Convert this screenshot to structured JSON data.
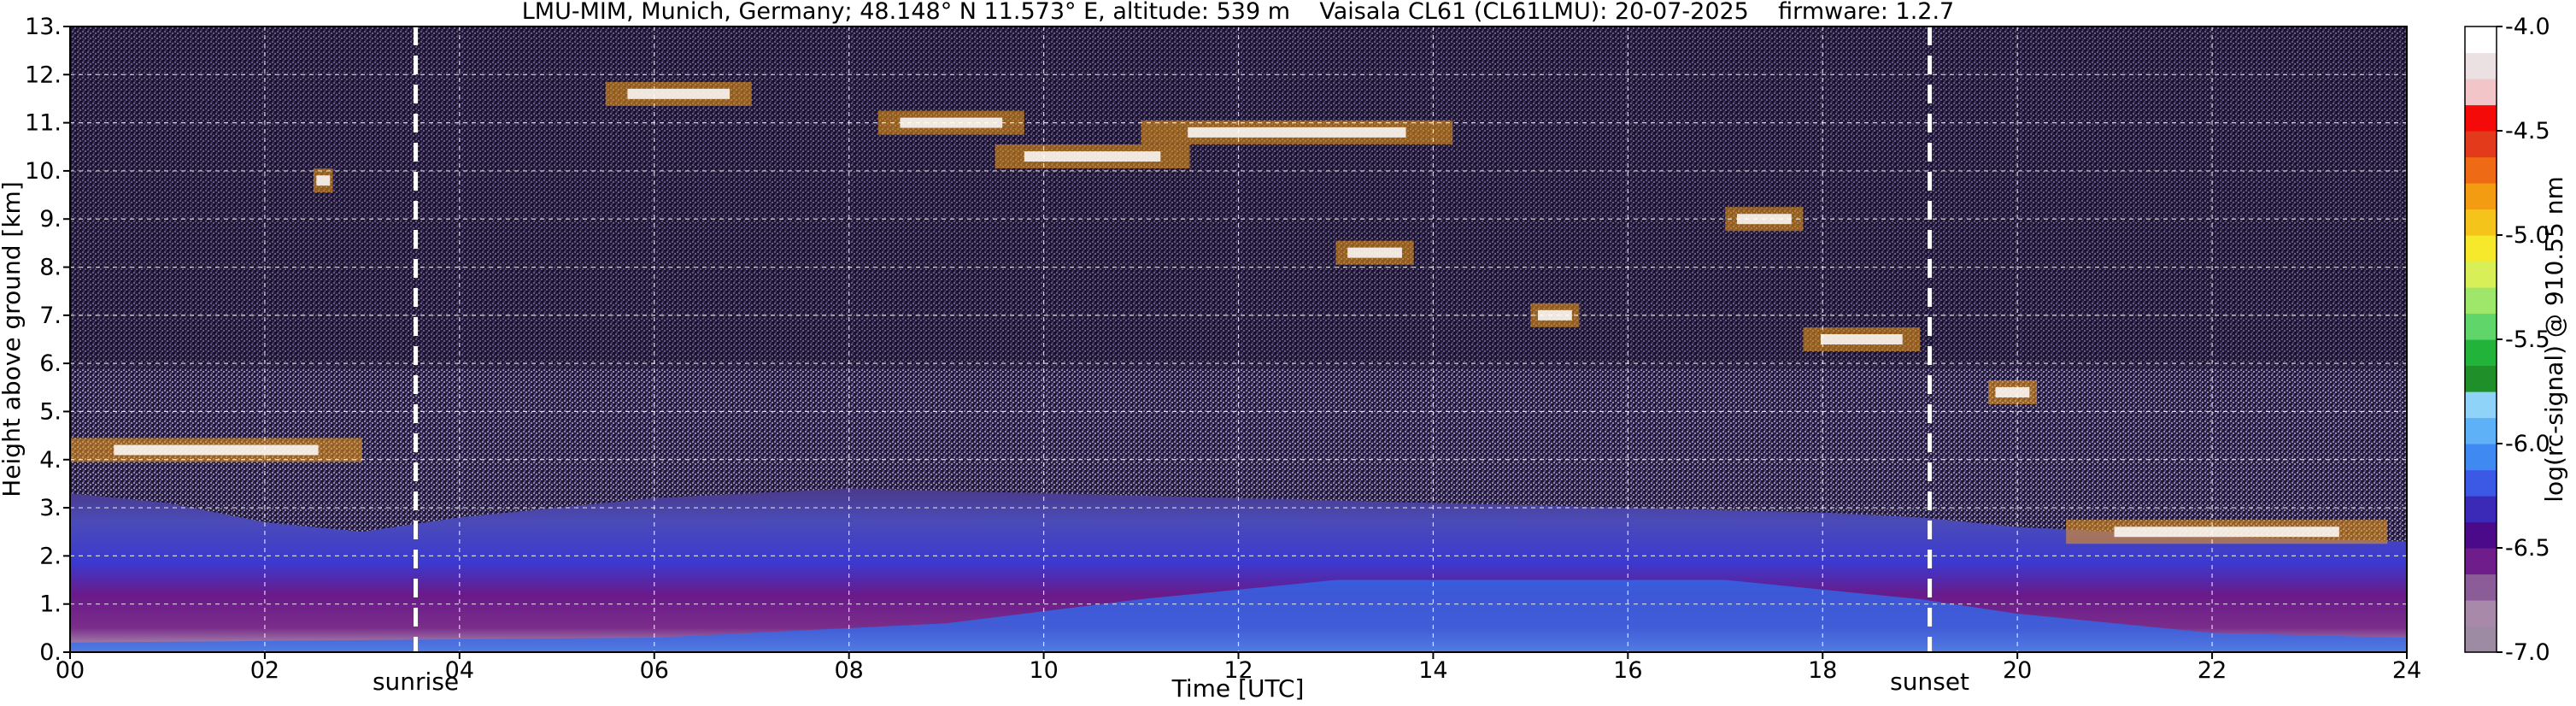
{
  "chart_data": {
    "type": "heatmap",
    "title": "LMU-MIM, Munich, Germany; 48.148° N 11.573° E, altitude: 539 m    Vaisala CL61 (CL61LMU): 20-07-2025    firmware: 1.2.7",
    "xlabel": "Time [UTC]",
    "ylabel": "Height above ground [km]",
    "xlim": [
      0,
      24
    ],
    "ylim": [
      0,
      13
    ],
    "x_ticks": [
      "00",
      "02",
      "04",
      "06",
      "08",
      "10",
      "12",
      "14",
      "16",
      "18",
      "20",
      "22",
      "24"
    ],
    "y_ticks": [
      "0.",
      "1.",
      "2.",
      "3.",
      "4.",
      "5.",
      "6.",
      "7.",
      "8.",
      "9.",
      "10.",
      "11.",
      "12.",
      "13."
    ],
    "grid": true,
    "colorbar": {
      "label": "log(rc-signal) @ 910.55 nm",
      "range": [
        -7.0,
        -4.0
      ],
      "ticks": [
        "-4.0",
        "-4.5",
        "-5.0",
        "-5.5",
        "-6.0",
        "-6.5",
        "-7.0"
      ],
      "colors": [
        "#9d8aa3",
        "#a889aa",
        "#8c5c98",
        "#6f1d8a",
        "#4b0a8a",
        "#3b2ab8",
        "#3c59e6",
        "#3f8af2",
        "#5eb0f7",
        "#8fd3f8",
        "#1f8f2a",
        "#22b33a",
        "#5fd56a",
        "#9fe76a",
        "#d8ef58",
        "#f6e92b",
        "#f5c41a",
        "#f39b11",
        "#ef6a14",
        "#e23a1a",
        "#f50a0a",
        "#f2c5c9",
        "#ebe0e2",
        "#ffffff"
      ]
    },
    "markers": [
      {
        "label": "sunrise",
        "x": 3.55
      },
      {
        "label": "sunset",
        "x": 19.1
      }
    ],
    "cloud_layers": [
      {
        "t0": 0.0,
        "t1": 3.0,
        "h": 4.2
      },
      {
        "t0": 2.5,
        "t1": 2.7,
        "h": 9.8
      },
      {
        "t0": 5.5,
        "t1": 7.0,
        "h": 11.6
      },
      {
        "t0": 8.3,
        "t1": 9.8,
        "h": 11.0
      },
      {
        "t0": 9.5,
        "t1": 11.5,
        "h": 10.3
      },
      {
        "t0": 11.0,
        "t1": 14.2,
        "h": 10.8
      },
      {
        "t0": 13.0,
        "t1": 13.8,
        "h": 8.3
      },
      {
        "t0": 15.0,
        "t1": 15.5,
        "h": 7.0
      },
      {
        "t0": 17.0,
        "t1": 17.8,
        "h": 9.0
      },
      {
        "t0": 17.8,
        "t1": 19.0,
        "h": 6.5
      },
      {
        "t0": 19.7,
        "t1": 20.2,
        "h": 5.4
      },
      {
        "t0": 20.5,
        "t1": 23.8,
        "h": 2.5
      }
    ]
  }
}
